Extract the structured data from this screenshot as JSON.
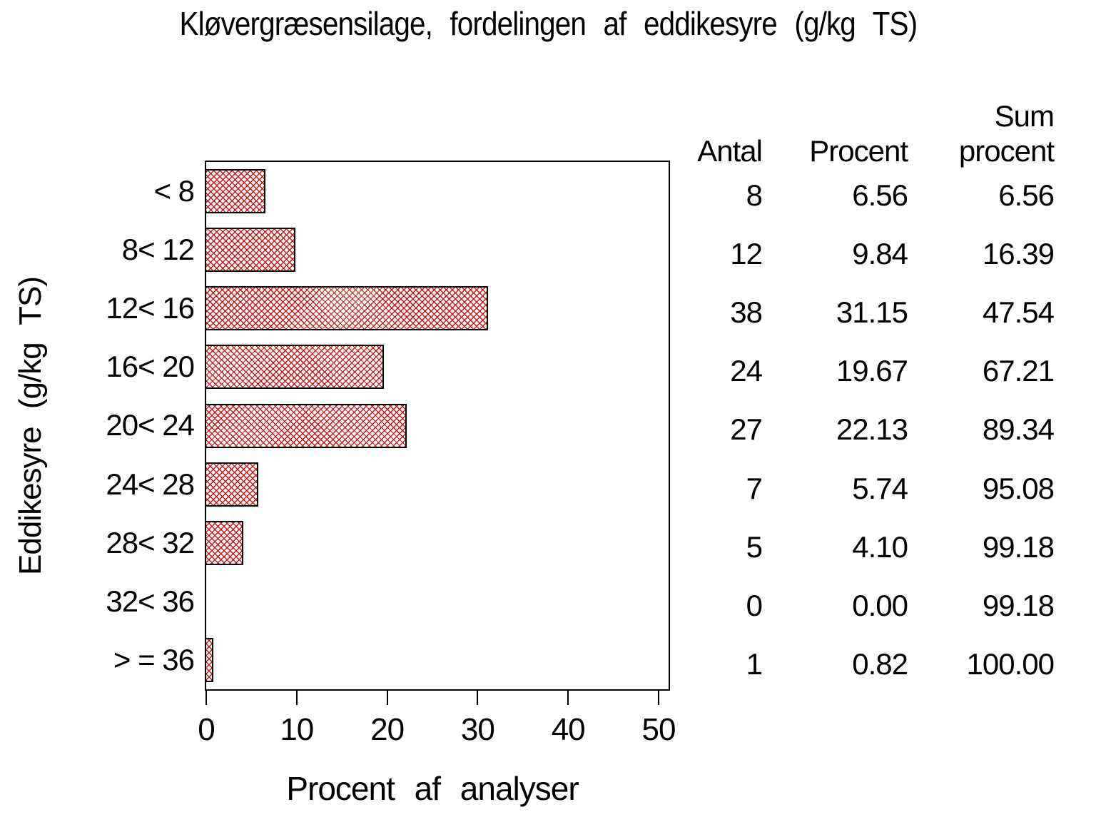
{
  "title": "Kløvergræsensilage, fordelingen af eddikesyre (g/kg TS)",
  "chart_data": {
    "type": "bar",
    "orientation": "horizontal",
    "title": "Kløvergræsensilage, fordelingen af eddikesyre (g/kg TS)",
    "ylabel": "Eddikesyre (g/kg TS)",
    "xlabel": "Procent af analyser",
    "categories": [
      "< 8",
      "8< 12",
      "12< 16",
      "16< 20",
      "20< 24",
      "24< 28",
      "28< 32",
      "32< 36",
      "> = 36"
    ],
    "values": [
      6.56,
      9.84,
      31.15,
      19.67,
      22.13,
      5.74,
      4.1,
      0.0,
      0.82
    ],
    "xlim": [
      0,
      50
    ],
    "xticks": [
      "0",
      "10",
      "20",
      "30",
      "40",
      "50"
    ],
    "grid": false,
    "legend": "none",
    "bar_pattern": "red-diagonal-crosshatch",
    "colors": {
      "bar_hatch": "#d41414",
      "bar_border": "#000000",
      "frame": "#000000",
      "text": "#000000",
      "background": "#ffffff"
    }
  },
  "table": {
    "columns": [
      {
        "header_lines": [
          "Antal"
        ]
      },
      {
        "header_lines": [
          "Procent"
        ]
      },
      {
        "header_lines": [
          "Sum",
          "procent"
        ]
      }
    ],
    "rows": [
      [
        "8",
        "6.56",
        "6.56"
      ],
      [
        "12",
        "9.84",
        "16.39"
      ],
      [
        "38",
        "31.15",
        "47.54"
      ],
      [
        "24",
        "19.67",
        "67.21"
      ],
      [
        "27",
        "22.13",
        "89.34"
      ],
      [
        "7",
        "5.74",
        "95.08"
      ],
      [
        "5",
        "4.10",
        "99.18"
      ],
      [
        "0",
        "0.00",
        "99.18"
      ],
      [
        "1",
        "0.82",
        "100.00"
      ]
    ]
  }
}
